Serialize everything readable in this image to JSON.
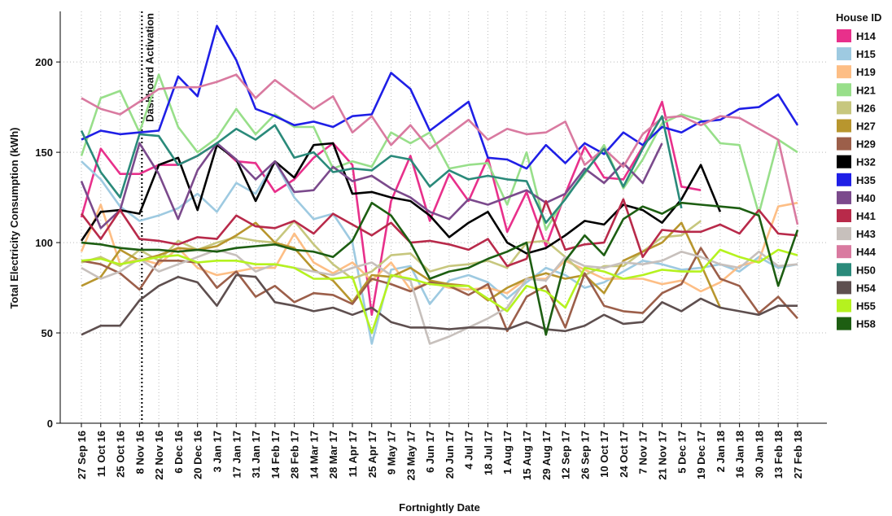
{
  "chart_data": {
    "type": "line",
    "x_label": "Fortnightly Date",
    "y_label": "Total Electricity Consumption (kWh)",
    "legend_title": "House ID",
    "legend_position": "right",
    "grid": true,
    "annotations": [
      {
        "text": "Dashboard Activation",
        "x": "8 Nov 16"
      }
    ],
    "categories": [
      "27 Sep 16",
      "11 Oct 16",
      "25 Oct 16",
      "8 Nov 16",
      "22 Nov 16",
      "6 Dec 16",
      "20 Dec 16",
      "3 Jan 17",
      "17 Jan 17",
      "31 Jan 17",
      "14 Feb 17",
      "28 Feb 17",
      "14 Mar 17",
      "28 Mar 17",
      "11 Apr 17",
      "25 Apr 17",
      "9 May 17",
      "23 May 17",
      "6 Jun 17",
      "20 Jun 17",
      "4 Jul 17",
      "18 Jul 17",
      "1 Aug 17",
      "15 Aug 17",
      "29 Aug 17",
      "12 Sep 17",
      "26 Sep 17",
      "10 Oct 17",
      "24 Oct 17",
      "7 Nov 17",
      "21 Nov 17",
      "5 Dec 17",
      "19 Dec 17",
      "2 Jan 18",
      "16 Jan 18",
      "30 Jan 18",
      "13 Feb 18",
      "27 Feb 18"
    ],
    "ylim": [
      0,
      228
    ],
    "yticks": [
      0,
      50,
      100,
      150,
      200
    ],
    "series": [
      {
        "name": "H14",
        "color": "#e8308b",
        "values": [
          114,
          152,
          138,
          138,
          143,
          143,
          148,
          155,
          145,
          144,
          128,
          135,
          147,
          155,
          143,
          60,
          123,
          148,
          112,
          138,
          123,
          147,
          106,
          128,
          98,
          127,
          153,
          136,
          135,
          153,
          178,
          131,
          129,
          null,
          null,
          null,
          null,
          null
        ]
      },
      {
        "name": "H15",
        "color": "#9ecae1",
        "values": [
          145,
          135,
          120,
          112,
          115,
          119,
          127,
          117,
          133,
          127,
          145,
          125,
          113,
          116,
          100,
          44,
          85,
          87,
          66,
          79,
          82,
          78,
          69,
          78,
          86,
          82,
          75,
          78,
          84,
          90,
          88,
          85,
          86,
          88,
          84,
          92,
          86,
          88
        ]
      },
      {
        "name": "H19",
        "color": "#fdbe85",
        "values": [
          95,
          121,
          88,
          91,
          88,
          97,
          86,
          82,
          84,
          86,
          86,
          105,
          89,
          83,
          89,
          79,
          89,
          74,
          78,
          75,
          74,
          75,
          72,
          80,
          80,
          90,
          85,
          80,
          80,
          80,
          77,
          79,
          73,
          78,
          87,
          90,
          120,
          122
        ]
      },
      {
        "name": "H21",
        "color": "#98df8a",
        "values": [
          148,
          180,
          184,
          161,
          193,
          164,
          150,
          158,
          174,
          160,
          171,
          164,
          164,
          141,
          145,
          142,
          161,
          155,
          161,
          141,
          143,
          144,
          121,
          150,
          107,
          125,
          138,
          154,
          130,
          146,
          166,
          171,
          168,
          155,
          154,
          116,
          157,
          150
        ]
      },
      {
        "name": "H26",
        "color": "#c7c77e",
        "values": [
          89,
          92,
          87,
          96,
          90,
          101,
          96,
          100,
          103,
          101,
          100,
          112,
          99,
          88,
          80,
          84,
          93,
          94,
          84,
          87,
          88,
          90,
          86,
          100,
          101,
          92,
          82,
          87,
          87,
          95,
          103,
          104,
          112,
          null,
          null,
          null,
          null,
          null
        ]
      },
      {
        "name": "H27",
        "color": "#b8962e",
        "values": [
          76,
          81,
          96,
          90,
          93,
          97,
          96,
          98,
          104,
          111,
          100,
          97,
          85,
          79,
          67,
          82,
          81,
          86,
          79,
          77,
          76,
          68,
          75,
          80,
          83,
          80,
          82,
          72,
          90,
          95,
          100,
          111,
          88,
          64,
          null,
          null,
          null,
          null
        ]
      },
      {
        "name": "H29",
        "color": "#9c5f4a",
        "values": [
          90,
          88,
          83,
          74,
          90,
          90,
          89,
          75,
          84,
          70,
          76,
          67,
          72,
          71,
          66,
          80,
          77,
          73,
          78,
          76,
          71,
          77,
          51,
          70,
          76,
          53,
          83,
          65,
          62,
          61,
          72,
          77,
          97,
          80,
          76,
          61,
          70,
          58
        ]
      },
      {
        "name": "H32",
        "color": "#000000",
        "values": [
          101,
          117,
          118,
          116,
          143,
          147,
          118,
          154,
          146,
          123,
          145,
          136,
          154,
          155,
          127,
          128,
          125,
          123,
          115,
          103,
          111,
          117,
          100,
          94,
          97,
          104,
          112,
          110,
          121,
          118,
          111,
          124,
          143,
          117,
          null,
          null,
          null,
          null
        ]
      },
      {
        "name": "H35",
        "color": "#1f1fe6",
        "values": [
          157,
          162,
          160,
          161,
          162,
          192,
          181,
          220,
          201,
          174,
          170,
          165,
          167,
          164,
          170,
          171,
          194,
          185,
          162,
          170,
          178,
          147,
          146,
          141,
          154,
          144,
          155,
          149,
          161,
          154,
          164,
          161,
          167,
          168,
          174,
          175,
          182,
          165
        ]
      },
      {
        "name": "H40",
        "color": "#7b4a8c",
        "values": [
          134,
          108,
          118,
          155,
          138,
          113,
          140,
          155,
          146,
          135,
          145,
          128,
          129,
          142,
          134,
          137,
          130,
          125,
          117,
          113,
          124,
          121,
          125,
          129,
          122,
          127,
          141,
          133,
          144,
          133,
          155,
          null,
          null,
          null,
          null,
          null,
          null,
          null
        ]
      },
      {
        "name": "H41",
        "color": "#b82a4a",
        "values": [
          116,
          102,
          118,
          102,
          101,
          99,
          103,
          102,
          115,
          109,
          108,
          112,
          105,
          116,
          110,
          104,
          111,
          100,
          101,
          99,
          96,
          102,
          87,
          91,
          123,
          96,
          99,
          100,
          124,
          92,
          107,
          106,
          106,
          110,
          105,
          118,
          105,
          104
        ]
      },
      {
        "name": "H43",
        "color": "#c7c0bc",
        "values": [
          86,
          80,
          84,
          91,
          84,
          88,
          92,
          96,
          93,
          84,
          88,
          86,
          84,
          82,
          86,
          89,
          82,
          79,
          44,
          48,
          53,
          58,
          64,
          80,
          79,
          92,
          87,
          86,
          89,
          88,
          90,
          95,
          92,
          88,
          86,
          95,
          87,
          88
        ]
      },
      {
        "name": "H44",
        "color": "#d97aa0",
        "values": [
          180,
          174,
          171,
          178,
          185,
          186,
          186,
          189,
          193,
          180,
          190,
          182,
          174,
          181,
          161,
          170,
          154,
          165,
          152,
          160,
          168,
          157,
          163,
          160,
          161,
          167,
          143,
          152,
          142,
          160,
          169,
          170,
          165,
          170,
          169,
          163,
          157,
          110
        ]
      },
      {
        "name": "H50",
        "color": "#2a8a7a",
        "values": [
          162,
          139,
          125,
          160,
          159,
          143,
          148,
          155,
          163,
          157,
          165,
          147,
          150,
          139,
          141,
          140,
          148,
          146,
          131,
          140,
          135,
          137,
          135,
          134,
          111,
          124,
          139,
          152,
          131,
          152,
          170,
          119,
          null,
          null,
          null,
          null,
          null,
          null
        ]
      },
      {
        "name": "H54",
        "color": "#5e4f4f",
        "values": [
          49,
          54,
          54,
          68,
          76,
          81,
          78,
          65,
          82,
          81,
          67,
          65,
          62,
          64,
          60,
          64,
          56,
          53,
          53,
          52,
          53,
          53,
          52,
          56,
          52,
          51,
          54,
          60,
          55,
          56,
          67,
          62,
          69,
          64,
          62,
          60,
          65,
          65
        ]
      },
      {
        "name": "H55",
        "color": "#b5f21f",
        "values": [
          90,
          91,
          88,
          90,
          92,
          93,
          89,
          90,
          90,
          88,
          88,
          86,
          80,
          80,
          81,
          50,
          82,
          80,
          77,
          76,
          76,
          69,
          62,
          76,
          73,
          64,
          86,
          84,
          80,
          82,
          85,
          84,
          84,
          96,
          92,
          89,
          96,
          93
        ]
      },
      {
        "name": "H58",
        "color": "#1d5e12",
        "values": [
          100,
          99,
          97,
          96,
          96,
          95,
          96,
          95,
          97,
          98,
          99,
          96,
          95,
          92,
          101,
          122,
          115,
          100,
          80,
          84,
          86,
          91,
          95,
          100,
          49,
          90,
          104,
          93,
          113,
          120,
          116,
          122,
          121,
          120,
          119,
          115,
          76,
          107
        ]
      }
    ]
  }
}
